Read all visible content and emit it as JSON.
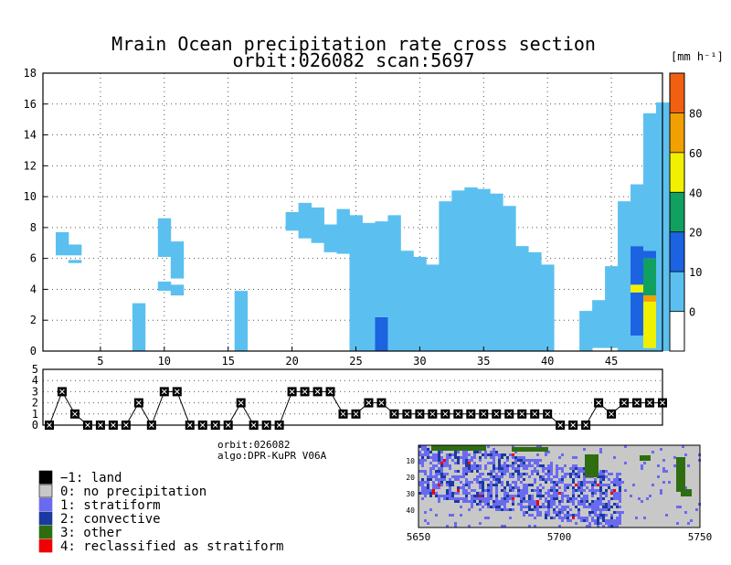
{
  "header": {
    "title_line1": "Mrain Ocean precipitation rate cross section",
    "title_line2": "orbit:026082    scan:5697"
  },
  "info": {
    "orbit_line": "orbit:026082",
    "algo_line": "algo:DPR-KuPR V06A"
  },
  "chart_data": [
    {
      "type": "heatmap",
      "name": "cross_section",
      "x_ticks": [
        5,
        10,
        15,
        20,
        25,
        30,
        35,
        40,
        45
      ],
      "x_tick_labels": [
        "5",
        "10",
        "15",
        "20",
        "25",
        "30",
        "35",
        "40",
        "45"
      ],
      "xlim": [
        1,
        49
      ],
      "y_ticks": [
        0,
        2,
        4,
        6,
        8,
        10,
        12,
        14,
        16,
        18
      ],
      "y_tick_labels": [
        "0",
        "2",
        "4",
        "6",
        "8",
        "10",
        "12",
        "14",
        "16",
        "18"
      ],
      "ylim": [
        0,
        18
      ],
      "grid": true,
      "colorbar": {
        "unit": "[mm h⁻¹]",
        "tick_labels": [
          "0",
          "10",
          "20",
          "40",
          "60",
          "80"
        ],
        "colors": [
          "#ffffff",
          "#5bc0f0",
          "#1b63e0",
          "#10a060",
          "#f0f000",
          "#f0a000",
          "#f06010"
        ]
      },
      "cell_colors": {
        "light": "#5bc0f0",
        "blue": "#1b63e0",
        "green": "#10a060",
        "yellow": "#f0f000",
        "orange": "#f0a000"
      },
      "rain_columns": [
        {
          "x": 2,
          "spans": [
            [
              6.2,
              7.7
            ]
          ]
        },
        {
          "x": 3,
          "spans": [
            [
              5.7,
              5.9
            ],
            [
              6.2,
              6.9
            ]
          ]
        },
        {
          "x": 8,
          "spans": [
            [
              0,
              3.1
            ]
          ]
        },
        {
          "x": 10,
          "spans": [
            [
              3.9,
              4.5
            ],
            [
              6.1,
              8.6
            ]
          ]
        },
        {
          "x": 11,
          "spans": [
            [
              3.6,
              4.3
            ],
            [
              4.7,
              7.1
            ]
          ]
        },
        {
          "x": 16,
          "spans": [
            [
              0,
              3.9
            ]
          ]
        },
        {
          "x": 20,
          "spans": [
            [
              7.8,
              9.0
            ]
          ]
        },
        {
          "x": 21,
          "spans": [
            [
              7.3,
              9.6
            ]
          ]
        },
        {
          "x": 22,
          "spans": [
            [
              7.0,
              9.3
            ]
          ]
        },
        {
          "x": 23,
          "spans": [
            [
              6.4,
              8.2
            ]
          ]
        },
        {
          "x": 24,
          "spans": [
            [
              6.3,
              9.2
            ]
          ]
        },
        {
          "x": 25,
          "spans": [
            [
              0,
              8.8
            ]
          ]
        },
        {
          "x": 26,
          "spans": [
            [
              0,
              8.3
            ]
          ]
        },
        {
          "x": 27,
          "spans": [
            [
              0,
              2.2
            ],
            [
              2.2,
              8.4
            ]
          ],
          "colors": [
            "blue",
            "light"
          ]
        },
        {
          "x": 28,
          "spans": [
            [
              0,
              8.8
            ]
          ]
        },
        {
          "x": 29,
          "spans": [
            [
              0,
              6.5
            ]
          ]
        },
        {
          "x": 30,
          "spans": [
            [
              0,
              6.1
            ]
          ]
        },
        {
          "x": 31,
          "spans": [
            [
              0,
              5.6
            ]
          ]
        },
        {
          "x": 32,
          "spans": [
            [
              0,
              9.7
            ]
          ]
        },
        {
          "x": 33,
          "spans": [
            [
              0,
              10.4
            ]
          ]
        },
        {
          "x": 34,
          "spans": [
            [
              0,
              10.6
            ]
          ]
        },
        {
          "x": 35,
          "spans": [
            [
              0,
              10.5
            ]
          ]
        },
        {
          "x": 36,
          "spans": [
            [
              0,
              10.2
            ]
          ]
        },
        {
          "x": 37,
          "spans": [
            [
              0,
              9.4
            ]
          ]
        },
        {
          "x": 38,
          "spans": [
            [
              0,
              6.8
            ]
          ]
        },
        {
          "x": 39,
          "spans": [
            [
              0,
              6.4
            ]
          ]
        },
        {
          "x": 40,
          "spans": [
            [
              0,
              5.6
            ]
          ]
        },
        {
          "x": 43,
          "spans": [
            [
              0,
              2.6
            ]
          ]
        },
        {
          "x": 44,
          "spans": [
            [
              0.2,
              3.3
            ]
          ]
        },
        {
          "x": 45,
          "spans": [
            [
              0.2,
              5.5
            ]
          ]
        },
        {
          "x": 46,
          "spans": [
            [
              0,
              9.7
            ]
          ]
        },
        {
          "x": 47,
          "spans": [
            [
              0,
              1.0
            ],
            [
              1.0,
              3.8
            ],
            [
              3.8,
              4.3
            ],
            [
              4.3,
              6.8
            ],
            [
              6.8,
              10.8
            ]
          ],
          "colors": [
            "light",
            "blue",
            "yellow",
            "blue",
            "light"
          ]
        },
        {
          "x": 48,
          "spans": [
            [
              0,
              0.2
            ],
            [
              0.2,
              3.2
            ],
            [
              3.2,
              3.6
            ],
            [
              3.6,
              6.0
            ],
            [
              6.0,
              6.5
            ],
            [
              6.5,
              15.4
            ]
          ],
          "colors": [
            "light",
            "yellow",
            "orange",
            "green",
            "blue",
            "light"
          ]
        },
        {
          "x": 49,
          "spans": [
            [
              0,
              16.1
            ]
          ]
        }
      ]
    },
    {
      "type": "line",
      "name": "rain_type_flags",
      "y_ticks": [
        0,
        1,
        2,
        3,
        4,
        5
      ],
      "y_tick_labels": [
        "0",
        "1",
        "2",
        "3",
        "4",
        "5"
      ],
      "ylim": [
        0,
        5
      ],
      "xlim": [
        1,
        49
      ],
      "x": [
        1,
        2,
        3,
        4,
        5,
        6,
        7,
        8,
        9,
        10,
        11,
        12,
        13,
        14,
        15,
        16,
        17,
        18,
        19,
        20,
        21,
        22,
        23,
        24,
        25,
        26,
        27,
        28,
        29,
        30,
        31,
        32,
        33,
        34,
        35,
        36,
        37,
        38,
        39,
        40,
        41,
        42,
        43,
        44,
        45,
        46,
        47,
        48,
        49
      ],
      "values": [
        0,
        3,
        1,
        0,
        0,
        0,
        0,
        2,
        0,
        3,
        3,
        0,
        0,
        0,
        0,
        2,
        0,
        0,
        0,
        3,
        3,
        3,
        3,
        1,
        1,
        2,
        2,
        1,
        1,
        1,
        1,
        1,
        1,
        1,
        1,
        1,
        1,
        1,
        1,
        1,
        0,
        0,
        0,
        2,
        1,
        2,
        2,
        2,
        2
      ]
    },
    {
      "type": "heatmap",
      "name": "rain_type_map",
      "x_tick_labels": [
        "5650",
        "5700",
        "5750"
      ],
      "y_tick_labels": [
        "10",
        "20",
        "30",
        "40"
      ],
      "legend": [
        {
          "label": "−1: land",
          "color": "#000000"
        },
        {
          "label": "0: no precipitation",
          "color": "#c8c8c8"
        },
        {
          "label": "1: stratiform",
          "color": "#6a6af0"
        },
        {
          "label": "2: convective",
          "color": "#1a3aa0"
        },
        {
          "label": "3: other",
          "color": "#2e6e10"
        },
        {
          "label": "4: reclassified as stratiform",
          "color": "#f00000"
        }
      ]
    }
  ]
}
